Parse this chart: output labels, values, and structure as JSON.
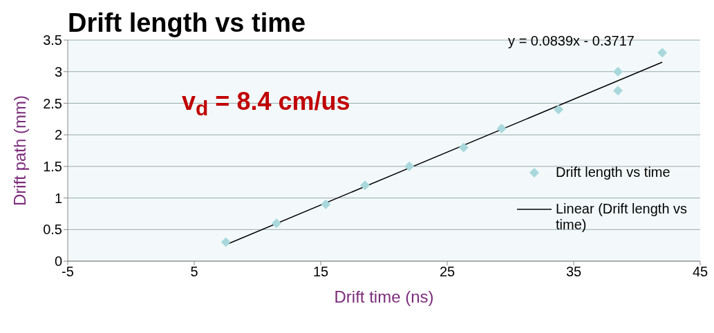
{
  "chart_data": {
    "type": "scatter",
    "title": "Drift length vs time",
    "xlabel": "Drift time (ns)",
    "ylabel": "Drift path (mm)",
    "annotations": [
      "y = 0.0839x - 0.3717",
      "v$_{d}$ = 8.4 cm/us"
    ],
    "xlim": [
      -5,
      45
    ],
    "xticks": [
      -5,
      5,
      15,
      25,
      35,
      45
    ],
    "ylim": [
      0,
      3.5
    ],
    "yticks": [
      0,
      0.5,
      1,
      1.5,
      2,
      2.5,
      3,
      3.5
    ],
    "grid": "y",
    "legend": "right",
    "marker": "diamond",
    "series": [
      {
        "name": "Drift length vs time",
        "color": "#a8d8dc",
        "x": [
          7.5,
          11.5,
          15.4,
          18.5,
          22,
          26.3,
          29.3,
          33.8,
          38.5,
          38.5,
          42
        ],
        "values": [
          0.3,
          0.6,
          0.9,
          1.2,
          1.5,
          1.8,
          2.1,
          2.4,
          2.7,
          3.0,
          3.3
        ]
      },
      {
        "name": "Linear (Drift length vs time)",
        "type": "line",
        "color": "#000000",
        "line_style": "solid",
        "marker": "none",
        "x": [
          7.5,
          42
        ],
        "values": [
          0.26,
          3.15
        ]
      }
    ]
  }
}
